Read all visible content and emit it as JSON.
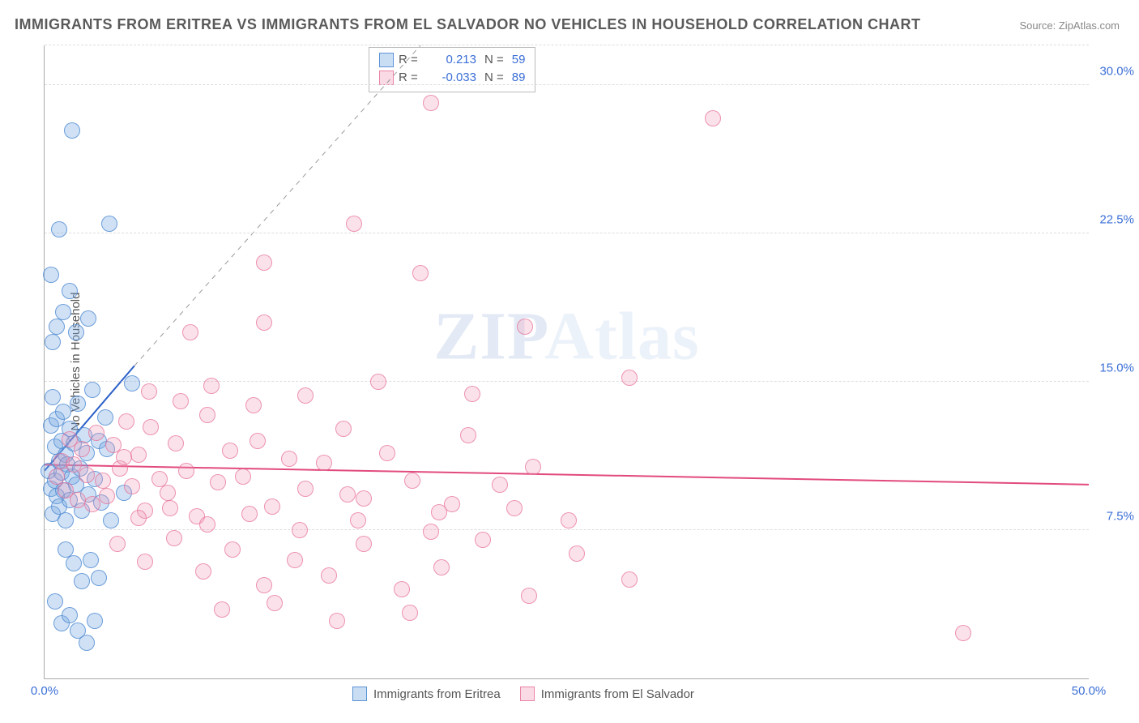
{
  "title": "IMMIGRANTS FROM ERITREA VS IMMIGRANTS FROM EL SALVADOR NO VEHICLES IN HOUSEHOLD CORRELATION CHART",
  "source": "Source: ZipAtlas.com",
  "ylabel": "No Vehicles in Household",
  "watermark_left": "ZIP",
  "watermark_right": "Atlas",
  "chart": {
    "type": "scatter",
    "xlim": [
      0,
      50
    ],
    "ylim": [
      0,
      32
    ],
    "xticks": [
      {
        "v": 0,
        "label": "0.0%"
      },
      {
        "v": 50,
        "label": "50.0%"
      }
    ],
    "yticks": [
      {
        "v": 7.5,
        "label": "7.5%"
      },
      {
        "v": 15,
        "label": "15.0%"
      },
      {
        "v": 22.5,
        "label": "22.5%"
      },
      {
        "v": 30,
        "label": "30.0%"
      }
    ],
    "gridlines_y": [
      7.5,
      15,
      22.5,
      30,
      32
    ],
    "marker_radius": 10,
    "background_color": "#ffffff",
    "grid_color": "#dddddd",
    "axis_color": "#aaaaaa",
    "tick_color": "#3b6fd6"
  },
  "series": [
    {
      "name": "Immigrants from Eritrea",
      "color_fill": "rgba(120,170,225,0.35)",
      "color_stroke": "rgba(80,140,210,0.8)",
      "r_label": "R =",
      "r_value": "0.213",
      "n_label": "N =",
      "n_value": "59",
      "trend": {
        "x1": 0,
        "y1": 10.5,
        "x2": 4.3,
        "y2": 15.8,
        "dash_x2": 18,
        "dash_y2": 32,
        "color": "#2a5fc8",
        "width": 2
      },
      "points": [
        [
          0.2,
          10.5
        ],
        [
          0.3,
          9.6
        ],
        [
          0.3,
          12.8
        ],
        [
          0.4,
          8.3
        ],
        [
          0.4,
          14.2
        ],
        [
          0.5,
          10.0
        ],
        [
          0.5,
          11.7
        ],
        [
          0.6,
          9.2
        ],
        [
          0.6,
          13.1
        ],
        [
          0.7,
          8.7
        ],
        [
          0.7,
          11.0
        ],
        [
          0.8,
          10.4
        ],
        [
          0.8,
          12.0
        ],
        [
          0.9,
          9.5
        ],
        [
          0.9,
          13.5
        ],
        [
          1.0,
          8.0
        ],
        [
          1.0,
          11.3
        ],
        [
          1.1,
          10.8
        ],
        [
          1.2,
          9.0
        ],
        [
          1.2,
          12.6
        ],
        [
          1.3,
          10.2
        ],
        [
          1.4,
          11.9
        ],
        [
          1.5,
          9.8
        ],
        [
          1.6,
          13.9
        ],
        [
          1.7,
          10.6
        ],
        [
          1.8,
          8.5
        ],
        [
          1.9,
          12.3
        ],
        [
          2.0,
          11.4
        ],
        [
          2.1,
          9.3
        ],
        [
          2.3,
          14.6
        ],
        [
          2.4,
          10.1
        ],
        [
          2.6,
          12.0
        ],
        [
          2.7,
          8.9
        ],
        [
          2.9,
          13.2
        ],
        [
          3.0,
          11.6
        ],
        [
          0.4,
          17.0
        ],
        [
          0.6,
          17.8
        ],
        [
          0.9,
          18.5
        ],
        [
          1.2,
          19.6
        ],
        [
          0.3,
          20.4
        ],
        [
          0.7,
          22.7
        ],
        [
          1.5,
          17.5
        ],
        [
          2.1,
          18.2
        ],
        [
          1.0,
          6.5
        ],
        [
          1.4,
          5.8
        ],
        [
          1.8,
          4.9
        ],
        [
          2.2,
          6.0
        ],
        [
          2.6,
          5.1
        ],
        [
          0.5,
          3.9
        ],
        [
          0.8,
          2.8
        ],
        [
          1.2,
          3.2
        ],
        [
          1.6,
          2.4
        ],
        [
          2.0,
          1.8
        ],
        [
          2.4,
          2.9
        ],
        [
          3.2,
          8.0
        ],
        [
          3.8,
          9.4
        ],
        [
          4.2,
          14.9
        ],
        [
          1.3,
          27.7
        ],
        [
          3.1,
          23.0
        ]
      ]
    },
    {
      "name": "Immigrants from El Salvador",
      "color_fill": "rgba(240,150,180,0.28)",
      "color_stroke": "rgba(230,110,150,0.7)",
      "r_label": "R =",
      "r_value": "-0.033",
      "n_label": "N =",
      "n_value": "89",
      "trend": {
        "x1": 0,
        "y1": 10.8,
        "x2": 50,
        "y2": 9.8,
        "color": "#e24a7e",
        "width": 2
      },
      "points": [
        [
          0.6,
          10.2
        ],
        [
          0.8,
          11.0
        ],
        [
          1.0,
          9.5
        ],
        [
          1.2,
          12.1
        ],
        [
          1.4,
          10.8
        ],
        [
          1.6,
          9.0
        ],
        [
          1.8,
          11.6
        ],
        [
          2.0,
          10.3
        ],
        [
          2.3,
          8.8
        ],
        [
          2.5,
          12.4
        ],
        [
          2.8,
          10.0
        ],
        [
          3.0,
          9.2
        ],
        [
          3.3,
          11.8
        ],
        [
          3.6,
          10.6
        ],
        [
          3.9,
          13.0
        ],
        [
          4.2,
          9.7
        ],
        [
          4.5,
          11.3
        ],
        [
          4.8,
          8.5
        ],
        [
          5.1,
          12.7
        ],
        [
          5.5,
          10.1
        ],
        [
          5.9,
          9.4
        ],
        [
          6.3,
          11.9
        ],
        [
          6.8,
          10.5
        ],
        [
          7.3,
          8.2
        ],
        [
          7.8,
          13.3
        ],
        [
          8.3,
          9.9
        ],
        [
          8.9,
          11.5
        ],
        [
          9.5,
          10.2
        ],
        [
          10.2,
          12.0
        ],
        [
          10.9,
          8.7
        ],
        [
          11.7,
          11.1
        ],
        [
          12.5,
          9.6
        ],
        [
          13.4,
          10.9
        ],
        [
          14.3,
          12.6
        ],
        [
          15.3,
          9.1
        ],
        [
          16.4,
          11.4
        ],
        [
          17.6,
          10.0
        ],
        [
          18.9,
          8.4
        ],
        [
          20.3,
          12.3
        ],
        [
          21.8,
          9.8
        ],
        [
          23.4,
          10.7
        ],
        [
          25.1,
          8.0
        ],
        [
          5.0,
          14.5
        ],
        [
          6.5,
          14.0
        ],
        [
          8.0,
          14.8
        ],
        [
          10.0,
          13.8
        ],
        [
          12.5,
          14.3
        ],
        [
          16.0,
          15.0
        ],
        [
          20.5,
          14.4
        ],
        [
          28.0,
          15.2
        ],
        [
          7.0,
          17.5
        ],
        [
          10.5,
          18.0
        ],
        [
          23.0,
          17.8
        ],
        [
          10.5,
          21.0
        ],
        [
          18.0,
          20.5
        ],
        [
          14.8,
          23.0
        ],
        [
          18.5,
          29.1
        ],
        [
          32.0,
          28.3
        ],
        [
          3.5,
          6.8
        ],
        [
          4.8,
          5.9
        ],
        [
          6.2,
          7.1
        ],
        [
          7.6,
          5.4
        ],
        [
          9.0,
          6.5
        ],
        [
          10.5,
          4.7
        ],
        [
          12.0,
          6.0
        ],
        [
          13.6,
          5.2
        ],
        [
          15.3,
          6.8
        ],
        [
          17.1,
          4.5
        ],
        [
          19.0,
          5.6
        ],
        [
          21.0,
          7.0
        ],
        [
          23.2,
          4.2
        ],
        [
          25.5,
          6.3
        ],
        [
          28.0,
          5.0
        ],
        [
          8.5,
          3.5
        ],
        [
          11.0,
          3.8
        ],
        [
          14.0,
          2.9
        ],
        [
          17.5,
          3.3
        ],
        [
          4.5,
          8.1
        ],
        [
          6.0,
          8.6
        ],
        [
          7.8,
          7.8
        ],
        [
          9.8,
          8.3
        ],
        [
          12.2,
          7.5
        ],
        [
          15.0,
          8.0
        ],
        [
          18.5,
          7.4
        ],
        [
          22.5,
          8.6
        ],
        [
          14.5,
          9.3
        ],
        [
          19.5,
          8.8
        ],
        [
          44.0,
          2.3
        ],
        [
          3.8,
          11.2
        ]
      ]
    }
  ]
}
